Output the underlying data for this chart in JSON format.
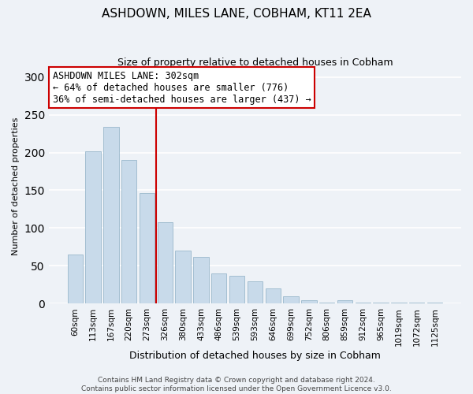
{
  "title": "ASHDOWN, MILES LANE, COBHAM, KT11 2EA",
  "subtitle": "Size of property relative to detached houses in Cobham",
  "xlabel": "Distribution of detached houses by size in Cobham",
  "ylabel": "Number of detached properties",
  "bar_color": "#c8daea",
  "bar_edge_color": "#9ab8cc",
  "background_color": "#eef2f7",
  "grid_color": "white",
  "annotation_box_color": "white",
  "annotation_box_edge": "#cc0000",
  "vline_color": "#cc0000",
  "categories": [
    "60sqm",
    "113sqm",
    "167sqm",
    "220sqm",
    "273sqm",
    "326sqm",
    "380sqm",
    "433sqm",
    "486sqm",
    "539sqm",
    "593sqm",
    "646sqm",
    "699sqm",
    "752sqm",
    "806sqm",
    "859sqm",
    "912sqm",
    "965sqm",
    "1019sqm",
    "1072sqm",
    "1125sqm"
  ],
  "values": [
    65,
    202,
    234,
    190,
    146,
    108,
    70,
    62,
    40,
    37,
    30,
    20,
    10,
    4,
    1,
    4,
    1,
    1,
    1,
    1,
    1
  ],
  "vline_position": 4.5,
  "annotation_text_line1": "ASHDOWN MILES LANE: 302sqm",
  "annotation_text_line2": "← 64% of detached houses are smaller (776)",
  "annotation_text_line3": "36% of semi-detached houses are larger (437) →",
  "footer_line1": "Contains HM Land Registry data © Crown copyright and database right 2024.",
  "footer_line2": "Contains public sector information licensed under the Open Government Licence v3.0.",
  "ylim": [
    0,
    310
  ],
  "yticks": [
    0,
    50,
    100,
    150,
    200,
    250,
    300
  ],
  "title_fontsize": 11,
  "subtitle_fontsize": 9,
  "xlabel_fontsize": 9,
  "ylabel_fontsize": 8,
  "tick_fontsize": 7.5,
  "annotation_fontsize": 8.5,
  "footer_fontsize": 6.5
}
